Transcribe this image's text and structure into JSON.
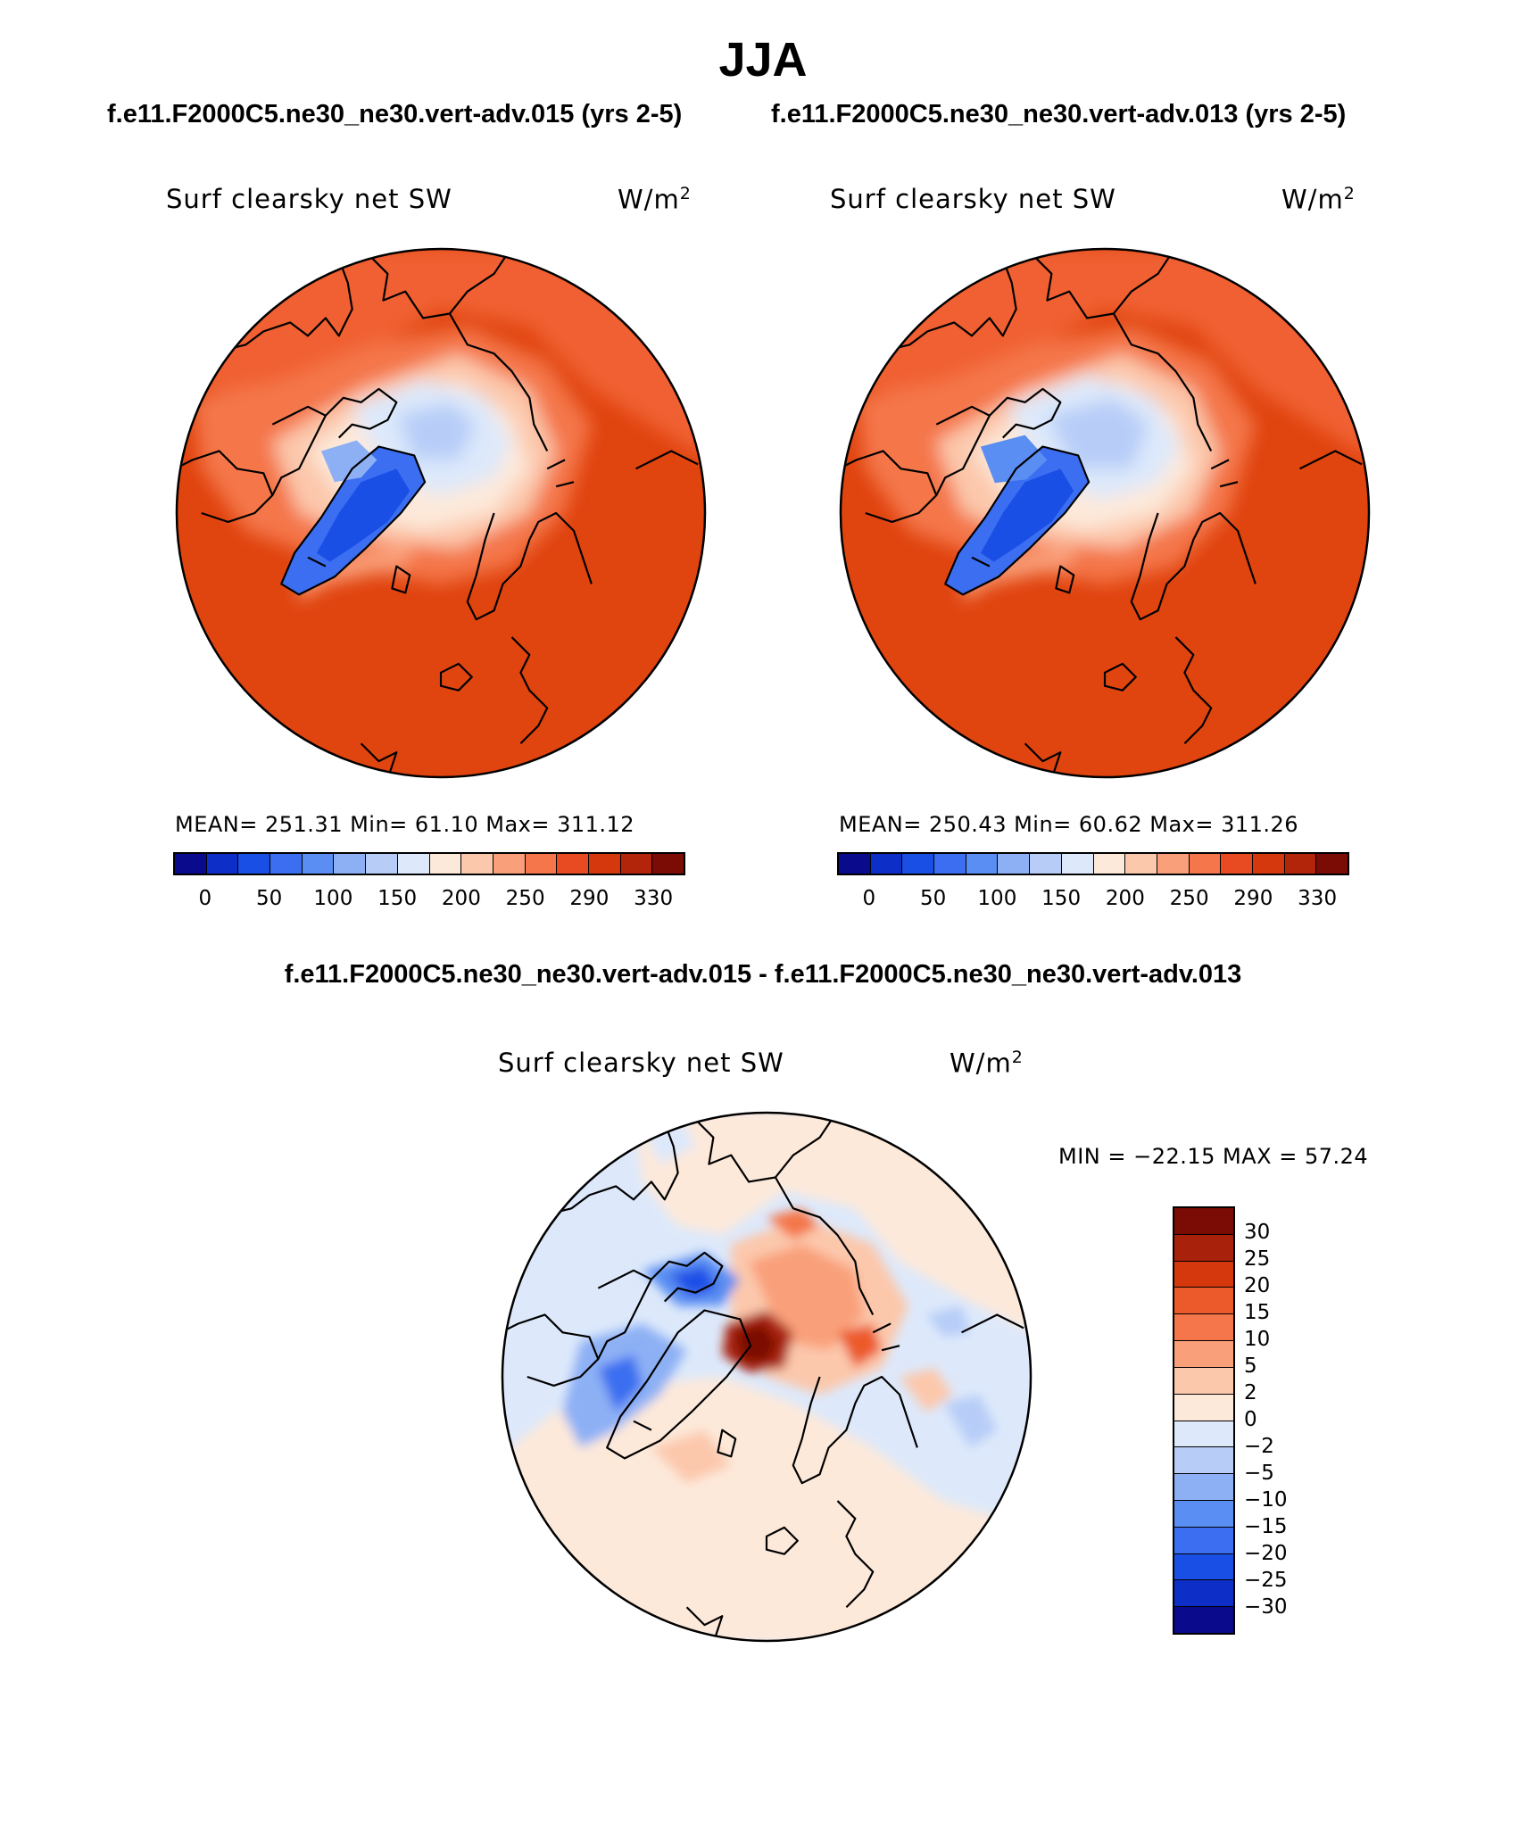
{
  "page": {
    "title": "JJA",
    "case1_title": "f.e11.F2000C5.ne30_ne30.vert-adv.015 (yrs 2-5)",
    "case2_title": "f.e11.F2000C5.ne30_ne30.vert-adv.013 (yrs 2-5)",
    "diff_title": "f.e11.F2000C5.ne30_ne30.vert-adv.015 - f.e11.F2000C5.ne30_ne30.vert-adv.013"
  },
  "panels": [
    {
      "variable": "Surf clearsky net SW",
      "units_base": "W/m",
      "units_exp": "2",
      "stats": "MEAN= 251.31   Min=   61.10   Max= 311.12"
    },
    {
      "variable": "Surf clearsky net SW",
      "units_base": "W/m",
      "units_exp": "2",
      "stats": "MEAN= 250.43   Min=   60.62   Max= 311.26"
    }
  ],
  "diff_panel": {
    "variable": "Surf clearsky net SW",
    "units_base": "W/m",
    "units_exp": "2",
    "stats": "MIN = −22.15 MAX =   57.24"
  },
  "colorbar_abs": {
    "ticks": [
      "0",
      "50",
      "100",
      "150",
      "200",
      "250",
      "290",
      "330"
    ],
    "colors": [
      "#0a0a8c",
      "#0e2fc7",
      "#1a4fe6",
      "#3b6ef0",
      "#5a8ef2",
      "#8db0f5",
      "#b7cdf8",
      "#dde9fb",
      "#fde9da",
      "#fcc8ac",
      "#f9a07a",
      "#f4764a",
      "#e84b22",
      "#d6380d",
      "#b3250a",
      "#7a0c05"
    ]
  },
  "colorbar_diff": {
    "ticks": [
      "30",
      "25",
      "20",
      "15",
      "10",
      "5",
      "2",
      "0",
      "−2",
      "−5",
      "−10",
      "−15",
      "−20",
      "−25",
      "−30"
    ],
    "colors": [
      "#7a0c05",
      "#a8210b",
      "#d6380d",
      "#ec5a2c",
      "#f4764a",
      "#f9a07a",
      "#fcc8ac",
      "#fde9da",
      "#dde9fb",
      "#b7cdf8",
      "#8db0f5",
      "#5a8ef2",
      "#3b6ef0",
      "#1a4fe6",
      "#0e2fc7",
      "#0a0a8c"
    ]
  }
}
